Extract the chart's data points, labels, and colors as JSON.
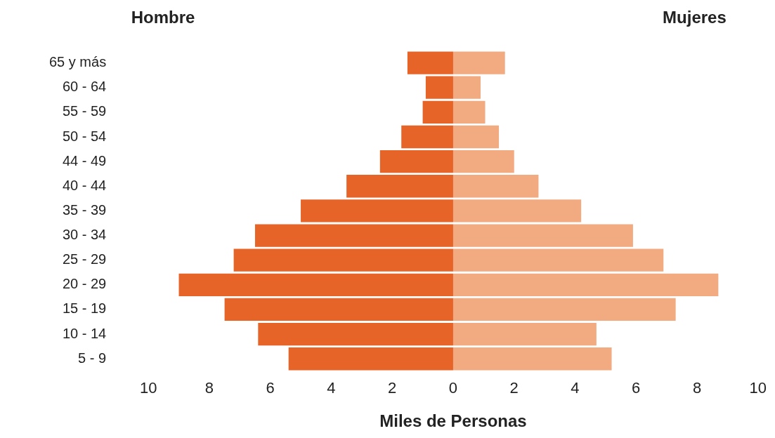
{
  "chart_data": {
    "type": "bar",
    "orientation": "horizontal",
    "stacked": true,
    "xlabel": "Miles de Personas",
    "categories": [
      "65 y más",
      "60 - 64",
      "55 - 59",
      "50 - 54",
      "44 - 49",
      "40 - 44",
      "35 - 39",
      "30 - 34",
      "25 - 29",
      "20 - 29",
      "15 - 19",
      "10 - 14",
      "5 - 9"
    ],
    "series": [
      {
        "color": "#e66428",
        "values": [
          -1.5,
          -0.9,
          -1.0,
          -1.7,
          -2.4,
          -3.5,
          -5.0,
          -6.5,
          -7.2,
          -9.0,
          -7.5,
          -6.4,
          -5.4
        ]
      },
      {
        "color": "#f2aa80",
        "values": [
          1.7,
          0.9,
          1.05,
          1.5,
          2.0,
          2.8,
          4.2,
          5.9,
          6.9,
          8.7,
          7.3,
          4.7,
          5.2
        ]
      }
    ],
    "xlim": [
      -10,
      10
    ],
    "xticks": [
      {
        "value": -10,
        "label": "10"
      },
      {
        "value": -8,
        "label": "8"
      },
      {
        "value": -6,
        "label": "6"
      },
      {
        "value": -4,
        "label": "4"
      },
      {
        "value": -2,
        "label": "2"
      },
      0,
      2,
      4,
      6,
      8,
      10
    ],
    "annotations": [
      "Hombre",
      "Mujeres"
    ],
    "grid": false,
    "legend": false
  }
}
